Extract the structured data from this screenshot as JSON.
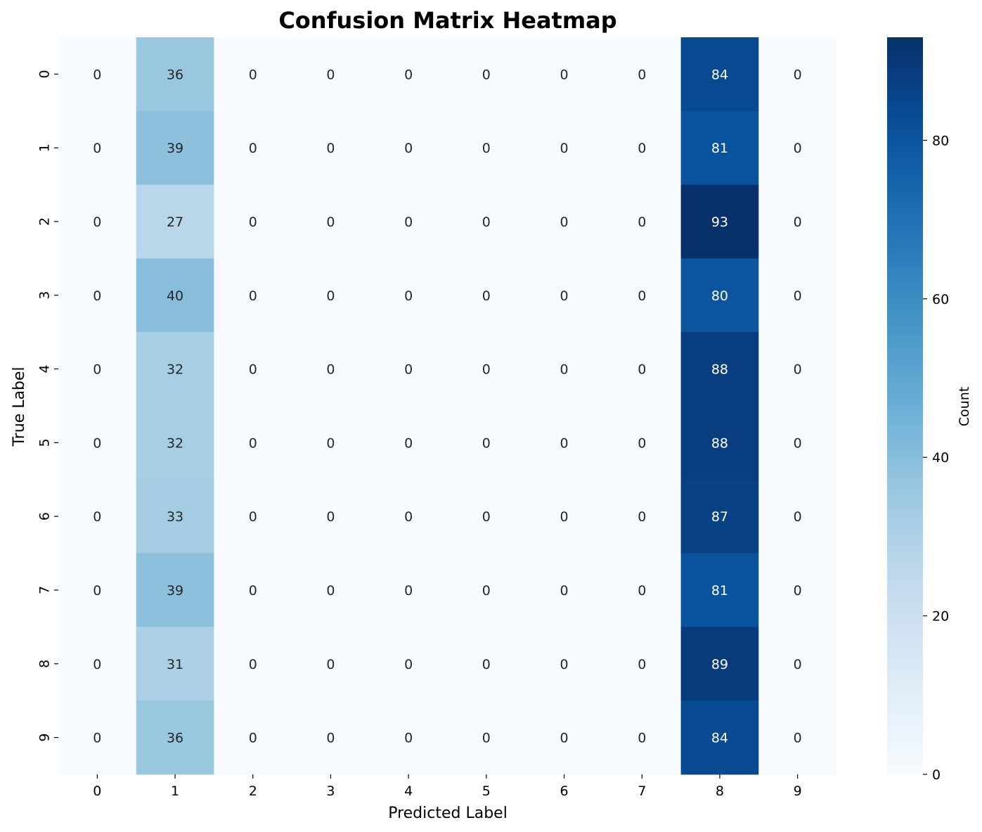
{
  "chart_data": {
    "type": "heatmap",
    "title": "Confusion Matrix Heatmap",
    "xlabel": "Predicted Label",
    "ylabel": "True Label",
    "x_categories": [
      "0",
      "1",
      "2",
      "3",
      "4",
      "5",
      "6",
      "7",
      "8",
      "9"
    ],
    "y_categories": [
      "0",
      "1",
      "2",
      "3",
      "4",
      "5",
      "6",
      "7",
      "8",
      "9"
    ],
    "values": [
      [
        0,
        36,
        0,
        0,
        0,
        0,
        0,
        0,
        84,
        0
      ],
      [
        0,
        39,
        0,
        0,
        0,
        0,
        0,
        0,
        81,
        0
      ],
      [
        0,
        27,
        0,
        0,
        0,
        0,
        0,
        0,
        93,
        0
      ],
      [
        0,
        40,
        0,
        0,
        0,
        0,
        0,
        0,
        80,
        0
      ],
      [
        0,
        32,
        0,
        0,
        0,
        0,
        0,
        0,
        88,
        0
      ],
      [
        0,
        32,
        0,
        0,
        0,
        0,
        0,
        0,
        88,
        0
      ],
      [
        0,
        33,
        0,
        0,
        0,
        0,
        0,
        0,
        87,
        0
      ],
      [
        0,
        39,
        0,
        0,
        0,
        0,
        0,
        0,
        81,
        0
      ],
      [
        0,
        31,
        0,
        0,
        0,
        0,
        0,
        0,
        89,
        0
      ],
      [
        0,
        36,
        0,
        0,
        0,
        0,
        0,
        0,
        84,
        0
      ]
    ],
    "colormap": "Blues",
    "colorbar": {
      "label": "Count",
      "range": [
        0,
        93
      ],
      "ticks": [
        "0",
        "20",
        "40",
        "60",
        "80"
      ]
    },
    "annotations": "cell counts shown"
  }
}
